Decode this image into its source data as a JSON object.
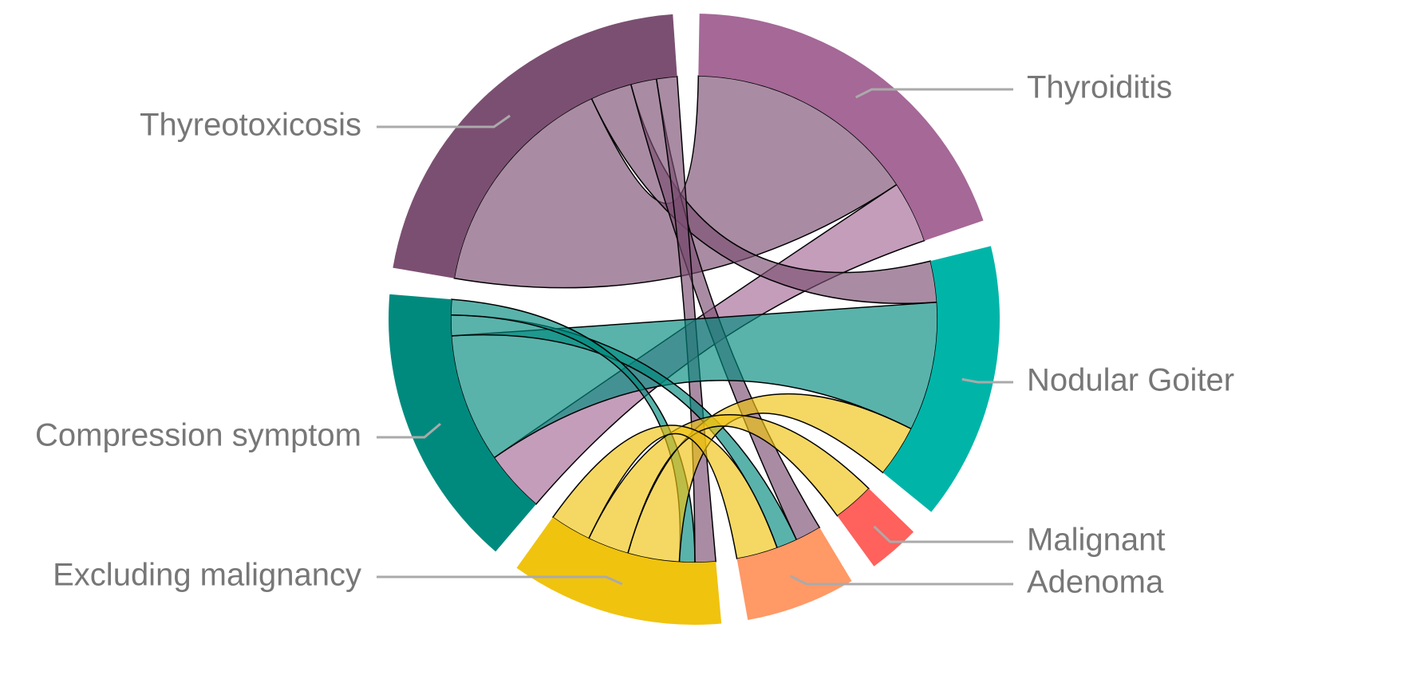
{
  "chart_data": {
    "type": "chord",
    "nodes": [
      {
        "name": "Thyroiditis",
        "color": "#a56897"
      },
      {
        "name": "Nodular Goiter",
        "color": "#00b5a8"
      },
      {
        "name": "Malignant",
        "color": "#ff615c"
      },
      {
        "name": "Adenoma",
        "color": "#ff9966"
      },
      {
        "name": "Excluding malignancy",
        "color": "#f0c30f"
      },
      {
        "name": "Compression symptom",
        "color": "#008a7e"
      },
      {
        "name": "Thyreotoxicosis",
        "color": "#7b4f72"
      }
    ],
    "links": [
      {
        "source": 6,
        "target": 0,
        "value": 45
      },
      {
        "source": 0,
        "target": 5,
        "value": 12
      },
      {
        "source": 6,
        "target": 1,
        "value": 8
      },
      {
        "source": 6,
        "target": 3,
        "value": 5
      },
      {
        "source": 6,
        "target": 4,
        "value": 4
      },
      {
        "source": 5,
        "target": 1,
        "value": 25
      },
      {
        "source": 5,
        "target": 3,
        "value": 4
      },
      {
        "source": 5,
        "target": 4,
        "value": 3
      },
      {
        "source": 4,
        "target": 1,
        "value": 10
      },
      {
        "source": 4,
        "target": 2,
        "value": 8
      },
      {
        "source": 4,
        "target": 3,
        "value": 8
      }
    ]
  }
}
